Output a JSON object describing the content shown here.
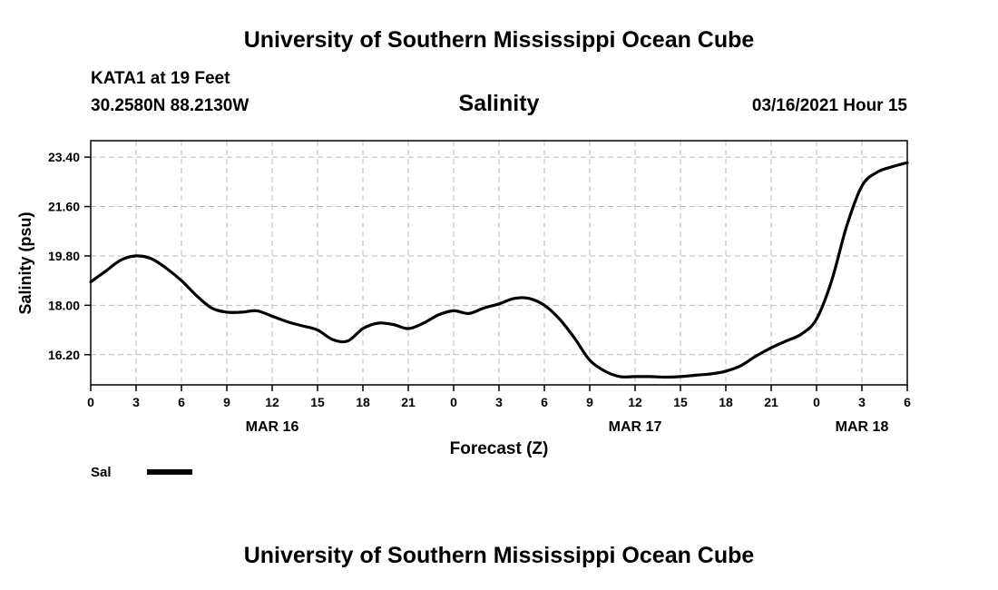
{
  "header": {
    "banner_top": "University of Southern Mississippi Ocean Cube",
    "banner_bottom": "University of Southern Mississippi Ocean Cube",
    "station": "KATA1 at 19 Feet",
    "coordinates": "30.2580N 88.2130W",
    "run_time": "03/16/2021 Hour 15"
  },
  "colors": {
    "line": "#000000",
    "grid": "#bbbbbb",
    "frame": "#000000"
  },
  "chart_data": {
    "type": "line",
    "title": "Salinity",
    "xlabel": "Forecast (Z)",
    "ylabel": "Salinity (psu)",
    "xlim": [
      0,
      54
    ],
    "ylim": [
      15.1,
      24.0
    ],
    "yticks": [
      23.4,
      21.6,
      19.8,
      18.0,
      16.2
    ],
    "ytick_labels": [
      "23.40",
      "21.60",
      "19.80",
      "18.00",
      "16.20"
    ],
    "xticks": [
      0,
      3,
      6,
      9,
      12,
      15,
      18,
      21,
      24,
      27,
      30,
      33,
      36,
      39,
      42,
      45,
      48,
      51,
      54
    ],
    "xtick_labels": [
      "0",
      "3",
      "6",
      "9",
      "12",
      "15",
      "18",
      "21",
      "0",
      "3",
      "6",
      "9",
      "12",
      "15",
      "18",
      "21",
      "0",
      "3",
      "6"
    ],
    "date_labels": [
      {
        "x": 12,
        "label": "MAR 16"
      },
      {
        "x": 36,
        "label": "MAR 17"
      },
      {
        "x": 51,
        "label": "MAR 18"
      }
    ],
    "grid": true,
    "legend": {
      "position": "bottom-left",
      "entries": [
        "Sal"
      ]
    },
    "series": [
      {
        "name": "Sal",
        "x": [
          0,
          1,
          2,
          3,
          4,
          5,
          6,
          7,
          8,
          9,
          10,
          11,
          12,
          13,
          14,
          15,
          16,
          17,
          18,
          19,
          20,
          21,
          22,
          23,
          24,
          25,
          26,
          27,
          28,
          29,
          30,
          31,
          32,
          33,
          34,
          35,
          36,
          37,
          38,
          39,
          40,
          41,
          42,
          43,
          44,
          45,
          46,
          47,
          48,
          49,
          50,
          51,
          52,
          53,
          54
        ],
        "values": [
          18.85,
          19.25,
          19.65,
          19.8,
          19.7,
          19.35,
          18.9,
          18.35,
          17.9,
          17.75,
          17.75,
          17.8,
          17.6,
          17.4,
          17.25,
          17.1,
          16.75,
          16.7,
          17.15,
          17.35,
          17.3,
          17.15,
          17.35,
          17.65,
          17.8,
          17.7,
          17.9,
          18.05,
          18.25,
          18.25,
          18.0,
          17.5,
          16.8,
          16.0,
          15.6,
          15.4,
          15.4,
          15.4,
          15.38,
          15.4,
          15.45,
          15.5,
          15.6,
          15.8,
          16.15,
          16.45,
          16.7,
          16.95,
          17.5,
          18.9,
          20.9,
          22.35,
          22.85,
          23.05,
          23.2
        ]
      }
    ]
  }
}
